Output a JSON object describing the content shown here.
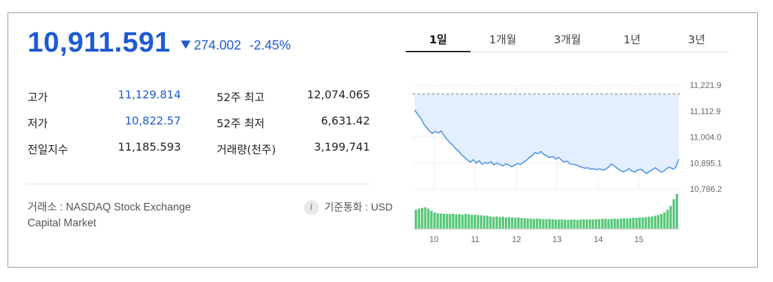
{
  "quote": {
    "price": "10,911.591",
    "change": "274.002",
    "change_pct": "-2.45%",
    "direction": "down"
  },
  "stats": [
    {
      "label": "고가",
      "value": "11,129.814",
      "label2": "52주 최고",
      "value2": "12,074.065"
    },
    {
      "label": "저가",
      "value": "10,822.57",
      "label2": "52주 최저",
      "value2": "6,631.42"
    },
    {
      "label": "전일지수",
      "value": "11,185.593",
      "label2": "거래량(천주)",
      "value2": "3,199,741"
    }
  ],
  "footer": {
    "exchange_line1": "거래소 : NASDAQ Stock Exchange",
    "exchange_line2": "Capital Market",
    "info_icon": "i",
    "currency": "기준통화 : USD"
  },
  "tabs": [
    {
      "label": "1일",
      "active": true
    },
    {
      "label": "1개월",
      "active": false
    },
    {
      "label": "3개월",
      "active": false
    },
    {
      "label": "1년",
      "active": false
    },
    {
      "label": "3년",
      "active": false
    }
  ],
  "colors": {
    "accent": "#1f5bd1",
    "line": "#4a90e2",
    "area": "#e3efff",
    "volume": "#58c879"
  },
  "chart_data": {
    "type": "line",
    "y_ticks": [
      "11,221.9",
      "11,112.9",
      "11,004.0",
      "10,895.1",
      "10,786.2"
    ],
    "x_ticks": [
      "10",
      "11",
      "12",
      "13",
      "14",
      "15"
    ],
    "ylim": [
      10786.27,
      11221.96
    ],
    "reference_value": 11185.593,
    "price_series": [
      11118,
      11100,
      11085,
      11062,
      11045,
      11030,
      11020,
      11028,
      11022,
      11030,
      11012,
      10995,
      10982,
      10970,
      10955,
      10945,
      10930,
      10920,
      10908,
      10900,
      10910,
      10896,
      10905,
      10890,
      10898,
      10894,
      10902,
      10888,
      10896,
      10890,
      10884,
      10892,
      10888,
      10880,
      10886,
      10894,
      10890,
      10899,
      10906,
      10918,
      10926,
      10940,
      10935,
      10944,
      10932,
      10926,
      10918,
      10924,
      10912,
      10920,
      10908,
      10900,
      10904,
      10892,
      10890,
      10888,
      10882,
      10878,
      10874,
      10876,
      10870,
      10872,
      10868,
      10872,
      10866,
      10870,
      10878,
      10892,
      10884,
      10874,
      10866,
      10858,
      10864,
      10872,
      10862,
      10858,
      10866,
      10870,
      10862,
      10852,
      10860,
      10868,
      10876,
      10866,
      10858,
      10862,
      10874,
      10878,
      10870,
      10878,
      10912
    ],
    "volume_series": [
      55,
      58,
      60,
      62,
      58,
      52,
      47,
      45,
      44,
      44,
      43,
      43,
      44,
      42,
      43,
      41,
      43,
      42,
      40,
      41,
      40,
      39,
      38,
      38,
      36,
      35,
      36,
      34,
      35,
      33,
      34,
      33,
      32,
      33,
      31,
      31,
      30,
      30,
      29,
      30,
      29,
      28,
      28,
      29,
      28,
      27,
      27,
      28,
      27,
      26,
      27,
      27,
      26,
      27,
      28,
      27,
      28,
      27,
      28,
      28,
      29,
      29,
      28,
      29,
      30,
      29,
      30,
      31,
      30,
      31,
      32,
      32,
      33,
      33,
      34,
      35,
      36,
      38,
      40,
      43,
      47,
      55,
      66,
      85,
      100
    ]
  }
}
